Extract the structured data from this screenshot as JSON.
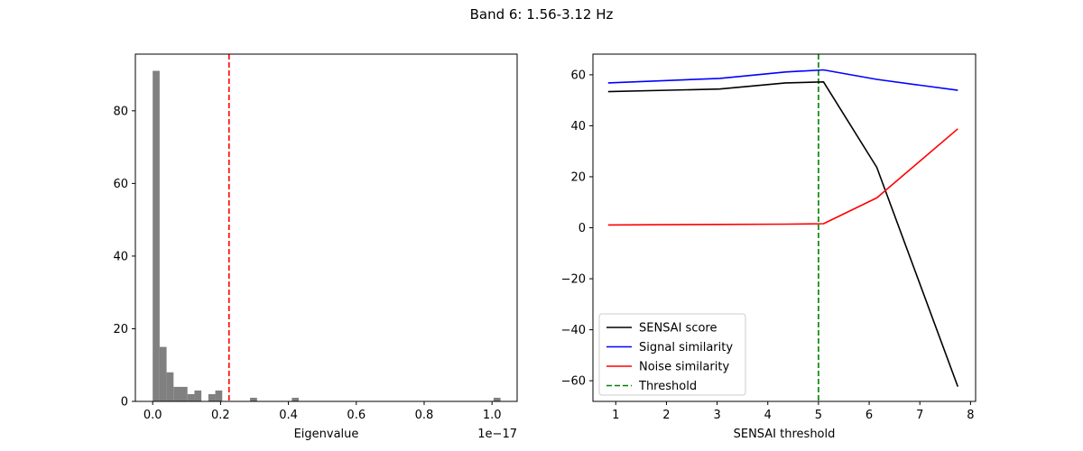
{
  "suptitle": "Band 6: 1.56-3.12 Hz",
  "chart_data": [
    {
      "type": "bar",
      "subtype": "histogram",
      "xlabel": "Eigenvalue",
      "ylabel": "",
      "x_offset_text": "1e−17",
      "xlim": [
        -0.051,
        1.074
      ],
      "ylim": [
        0,
        95.6
      ],
      "xticks": [
        0.0,
        0.2,
        0.4,
        0.6,
        0.8,
        1.0
      ],
      "xtick_labels": [
        "0.0",
        "0.2",
        "0.4",
        "0.6",
        "0.8",
        "1.0"
      ],
      "yticks": [
        0,
        20,
        40,
        60,
        80
      ],
      "ytick_labels": [
        "0",
        "20",
        "40",
        "60",
        "80"
      ],
      "bin_width": 0.0205,
      "bin_starts": [
        0.0,
        0.0205,
        0.041,
        0.0615,
        0.082,
        0.1025,
        0.123,
        0.164,
        0.1845,
        0.287,
        0.41,
        1.0045
      ],
      "counts": [
        91,
        15,
        8,
        4,
        4,
        2,
        3,
        2,
        3,
        1,
        1,
        1
      ],
      "bar_color": "#808080",
      "threshold": 0.225,
      "threshold_color": "#ff0000"
    },
    {
      "type": "line",
      "xlabel": "SENSAI threshold",
      "ylabel": "",
      "xlim": [
        0.55,
        8.1
      ],
      "ylim": [
        -68.1,
        68.1
      ],
      "xticks": [
        1,
        2,
        3,
        4,
        5,
        6,
        7,
        8
      ],
      "xtick_labels": [
        "1",
        "2",
        "3",
        "4",
        "5",
        "6",
        "7",
        "8"
      ],
      "yticks": [
        -60,
        -40,
        -20,
        0,
        20,
        40,
        60
      ],
      "ytick_labels": [
        "−60",
        "−40",
        "−20",
        "0",
        "20",
        "40",
        "60"
      ],
      "x": [
        0.85,
        3.05,
        4.35,
        5.1,
        6.15,
        7.75
      ],
      "series": [
        {
          "name": "SENSAI score",
          "color": "#000000",
          "values": [
            53.4,
            54.4,
            56.8,
            57.2,
            23.7,
            -62.3
          ]
        },
        {
          "name": "Signal similarity",
          "color": "#0000ff",
          "values": [
            56.8,
            58.6,
            61.1,
            61.9,
            58.2,
            53.9
          ]
        },
        {
          "name": "Noise similarity",
          "color": "#ff0000",
          "values": [
            1.1,
            1.3,
            1.4,
            1.6,
            11.7,
            38.8
          ]
        }
      ],
      "threshold": {
        "name": "Threshold",
        "x": 5.0,
        "color": "#008000"
      },
      "legend_loc": "lower left"
    }
  ]
}
